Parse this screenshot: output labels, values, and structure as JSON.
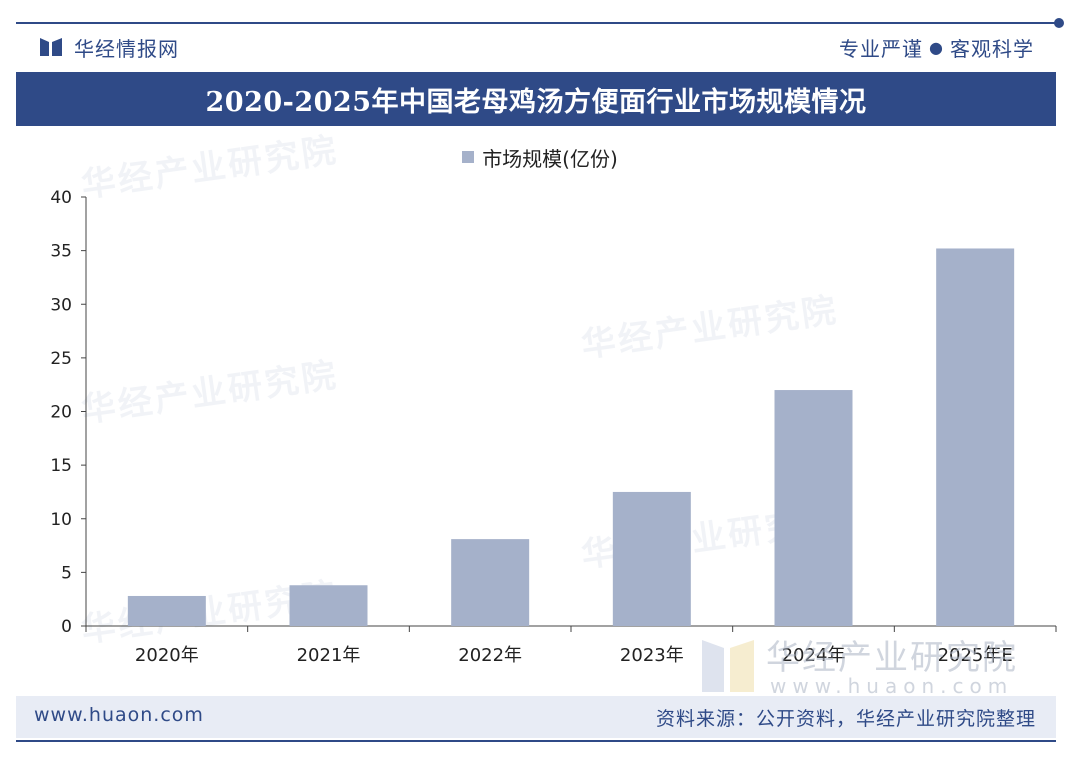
{
  "header": {
    "brand": "华经情报网",
    "slogan_left": "专业严谨",
    "slogan_dot": "●",
    "slogan_right": "客观科学"
  },
  "watermark": {
    "text": "华经产业研究院",
    "url_text": "www.huaon.com"
  },
  "footer": {
    "url": "www.huaon.com",
    "source": "资料来源：公开资料，华经产业研究院整理"
  },
  "colors": {
    "brand": "#2f4a87",
    "bar": "#a5b1ca",
    "footer_bg": "#e8ecf5"
  },
  "chart_data": {
    "type": "bar",
    "title": "2020-2025年中国老母鸡汤方便面行业市场规模情况",
    "categories": [
      "2020年",
      "2021年",
      "2022年",
      "2023年",
      "2024年",
      "2025年E"
    ],
    "series": [
      {
        "name": "市场规模(亿份)",
        "values": [
          2.8,
          3.8,
          8.1,
          12.5,
          22.0,
          35.2
        ]
      }
    ],
    "ylim": [
      0,
      40
    ],
    "yticks": [
      0,
      5,
      10,
      15,
      20,
      25,
      30,
      35,
      40
    ],
    "xlabel": "",
    "ylabel": "",
    "legend": "top-center",
    "grid": false
  }
}
